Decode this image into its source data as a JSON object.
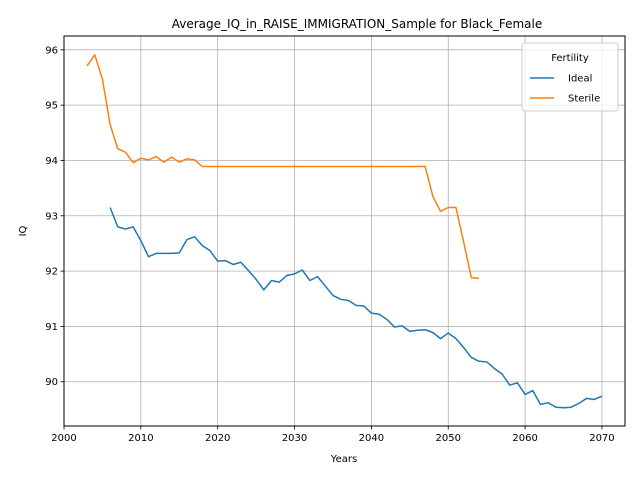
{
  "chart_data": {
    "type": "line",
    "title": "Average_IQ_in_RAISE_IMMIGRATION_Sample for Black_Female",
    "xlabel": "Years",
    "ylabel": "IQ",
    "xlim": [
      2000,
      2073
    ],
    "ylim": [
      89.2,
      96.25
    ],
    "x_ticks": [
      2000,
      2010,
      2020,
      2030,
      2040,
      2050,
      2060,
      2070
    ],
    "y_ticks": [
      90,
      91,
      92,
      93,
      94,
      95,
      96
    ],
    "grid": true,
    "legend": {
      "title": "Fertility",
      "placement": "top-right"
    },
    "series": [
      {
        "name": "Ideal",
        "color": "#1f77b4",
        "x": [
          2006,
          2007,
          2008,
          2009,
          2010,
          2011,
          2012,
          2013,
          2014,
          2015,
          2016,
          2017,
          2018,
          2019,
          2020,
          2021,
          2022,
          2023,
          2024,
          2025,
          2026,
          2027,
          2028,
          2029,
          2030,
          2031,
          2032,
          2033,
          2034,
          2035,
          2036,
          2037,
          2038,
          2039,
          2040,
          2041,
          2042,
          2043,
          2044,
          2045,
          2046,
          2047,
          2048,
          2049,
          2050,
          2051,
          2052,
          2053,
          2054,
          2055,
          2056,
          2057,
          2058,
          2059,
          2060,
          2061,
          2062,
          2063,
          2064,
          2065,
          2066,
          2067,
          2068,
          2069,
          2070
        ],
        "y": [
          93.15,
          92.8,
          92.76,
          92.8,
          92.55,
          92.26,
          92.32,
          92.32,
          92.32,
          92.33,
          92.57,
          92.62,
          92.46,
          92.37,
          92.18,
          92.19,
          92.12,
          92.16,
          92.01,
          91.85,
          91.66,
          91.83,
          91.8,
          91.92,
          91.95,
          92.02,
          91.83,
          91.9,
          91.73,
          91.56,
          91.49,
          91.47,
          91.38,
          91.37,
          91.24,
          91.22,
          91.13,
          90.99,
          91.01,
          90.91,
          90.93,
          90.94,
          90.89,
          90.78,
          90.88,
          90.78,
          90.62,
          90.44,
          90.37,
          90.36,
          90.24,
          90.14,
          89.94,
          89.98,
          89.77,
          89.84,
          89.59,
          89.62,
          89.54,
          89.53,
          89.54,
          89.61,
          89.7,
          89.68,
          89.74
        ]
      },
      {
        "name": "Sterile",
        "color": "#ff7f0e",
        "x": [
          2003,
          2004,
          2005,
          2006,
          2007,
          2008,
          2009,
          2010,
          2011,
          2012,
          2013,
          2014,
          2015,
          2016,
          2017,
          2018,
          2019,
          2020,
          2021,
          2022,
          2023,
          2024,
          2025,
          2026,
          2027,
          2028,
          2029,
          2030,
          2031,
          2032,
          2033,
          2034,
          2035,
          2036,
          2037,
          2038,
          2039,
          2040,
          2041,
          2042,
          2043,
          2044,
          2045,
          2046,
          2047,
          2048,
          2049,
          2050,
          2051,
          2052,
          2053,
          2054
        ],
        "y": [
          95.71,
          95.91,
          95.47,
          94.65,
          94.21,
          94.15,
          93.96,
          94.04,
          94.01,
          94.07,
          93.97,
          94.06,
          93.97,
          94.03,
          94.01,
          93.89,
          93.89,
          93.89,
          93.89,
          93.89,
          93.89,
          93.89,
          93.89,
          93.89,
          93.89,
          93.89,
          93.89,
          93.89,
          93.89,
          93.89,
          93.89,
          93.89,
          93.89,
          93.89,
          93.89,
          93.89,
          93.89,
          93.89,
          93.89,
          93.89,
          93.89,
          93.89,
          93.89,
          93.89,
          93.89,
          93.35,
          93.08,
          93.15,
          93.15,
          92.53,
          91.88,
          91.87
        ]
      }
    ]
  }
}
